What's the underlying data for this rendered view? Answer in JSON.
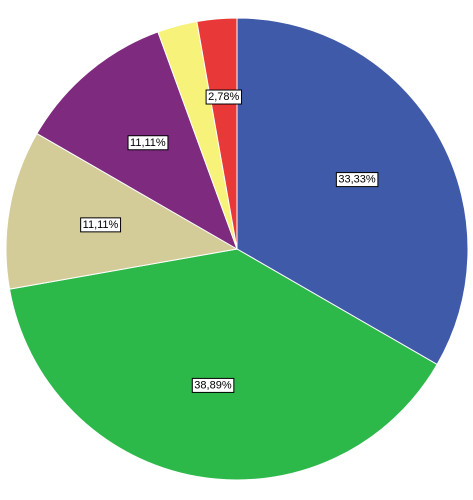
{
  "chart_data": {
    "type": "pie",
    "values": [
      33.33,
      38.89,
      11.11,
      11.11,
      2.78,
      2.78
    ],
    "value_labels": [
      "33,33%",
      "38,89%",
      "11,11%",
      "11,11%",
      null,
      "2,78%"
    ],
    "colors": [
      "#3f5aa9",
      "#2db84a",
      "#d4cc98",
      "#7e2a7e",
      "#f7f37a",
      "#e83838"
    ]
  }
}
